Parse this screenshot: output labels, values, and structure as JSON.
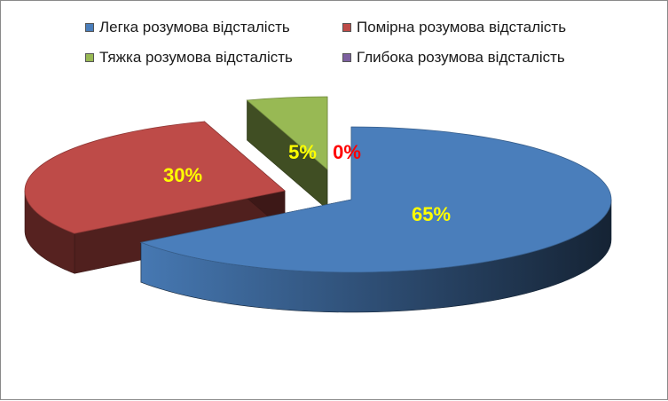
{
  "chart_data": {
    "type": "pie",
    "style": "3d-exploded",
    "legend_position": "top",
    "categories": [
      "Легка розумова відсталість",
      "Помірна розумова відсталість",
      "Тяжка розумова відсталість",
      "Глибока розумова відсталість"
    ],
    "values": [
      65,
      30,
      5,
      0
    ],
    "data_labels": [
      "65%",
      "30%",
      "5%",
      "0%"
    ],
    "colors": [
      "#4a7ebb",
      "#be4b48",
      "#98b954",
      "#7d60a0"
    ],
    "label_colors": [
      "#ffff00",
      "#ffff00",
      "#ffff00",
      "#ff0000"
    ]
  }
}
